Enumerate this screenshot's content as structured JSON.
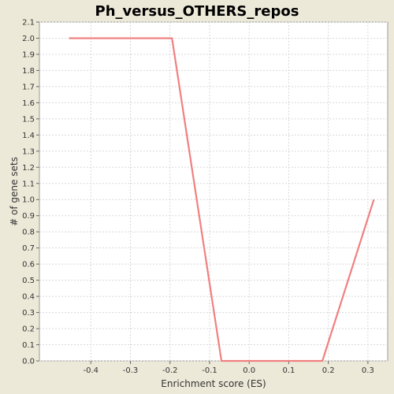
{
  "chart_data": {
    "type": "line",
    "title": "Ph_versus_OTHERS_repos",
    "xlabel": "Enrichment score (ES)",
    "ylabel": "# of gene sets",
    "xlim": [
      -0.53,
      0.35
    ],
    "ylim": [
      0.0,
      2.1
    ],
    "xticks": [
      -0.4,
      -0.3,
      -0.2,
      -0.1,
      0.0,
      0.1,
      0.2,
      0.3
    ],
    "xtick_labels": [
      "-0.4",
      "-0.3",
      "-0.2",
      "-0.1",
      "0.0",
      "0.1",
      "0.2",
      "0.3"
    ],
    "yticks": [
      0.0,
      0.1,
      0.2,
      0.3,
      0.4,
      0.5,
      0.6,
      0.7,
      0.8,
      0.9,
      1.0,
      1.1,
      1.2,
      1.3,
      1.4,
      1.5,
      1.6,
      1.7,
      1.8,
      1.9,
      2.0,
      2.1
    ],
    "ytick_labels": [
      "0.0",
      "0.1",
      "0.2",
      "0.3",
      "0.4",
      "0.5",
      "0.6",
      "0.7",
      "0.8",
      "0.9",
      "1.0",
      "1.1",
      "1.2",
      "1.3",
      "1.4",
      "1.5",
      "1.6",
      "1.7",
      "1.8",
      "1.9",
      "2.0",
      "2.1"
    ],
    "grid": true,
    "series": [
      {
        "color": "#f08080",
        "points": [
          {
            "x": -0.455,
            "y": 2.0
          },
          {
            "x": -0.195,
            "y": 2.0
          },
          {
            "x": -0.07,
            "y": 0.0
          },
          {
            "x": 0.185,
            "y": 0.0
          },
          {
            "x": 0.315,
            "y": 1.0
          }
        ]
      }
    ]
  }
}
